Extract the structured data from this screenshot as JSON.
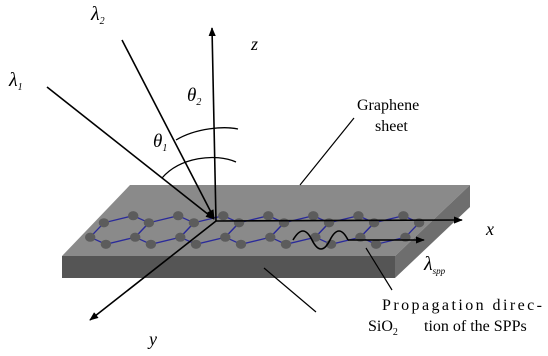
{
  "labels": {
    "lambda1_base": "λ",
    "lambda1_sub": "1",
    "lambda2_base": "λ",
    "lambda2_sub": "2",
    "theta1_base": "θ",
    "theta1_sub": "1",
    "theta2_base": "θ",
    "theta2_sub": "2",
    "axis_z": "z",
    "axis_x": "x",
    "axis_y": "y",
    "graphene_line1": "Graphene",
    "graphene_line2": "sheet",
    "lambda_spp_base": "λ",
    "lambda_spp_sub": "spp",
    "propagation_line1": "Propagation direc-",
    "propagation_line2": "tion of the SPPs",
    "substrate_base": "SiO",
    "substrate_sub": "2"
  },
  "colors": {
    "slab_top": "#8a8a8a",
    "slab_side": "#6e6e6e",
    "slab_front": "#555555",
    "lattice_bond": "#2a2a9a",
    "atom": "#5c5c5c",
    "lines": "#000000"
  }
}
